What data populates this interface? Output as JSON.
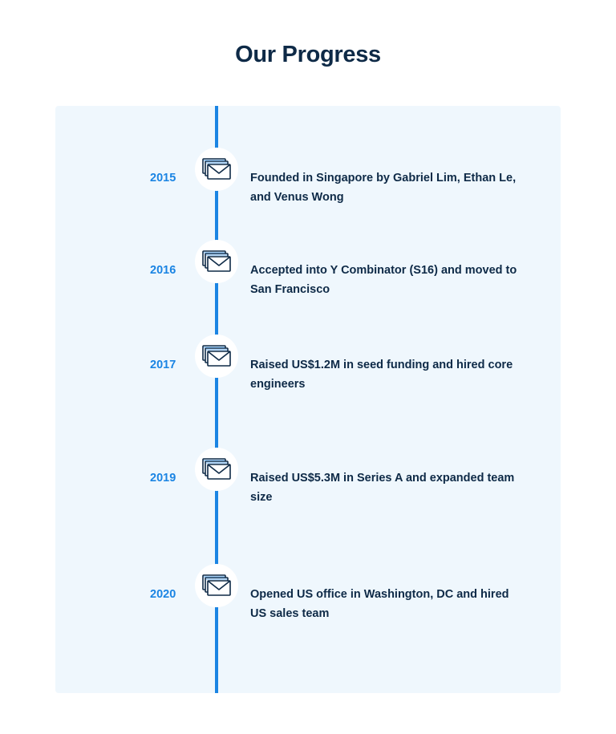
{
  "page": {
    "title": "Our Progress"
  },
  "colors": {
    "accent": "#1a84e3",
    "text": "#0e2a47",
    "panel_bg": "#eff7fd"
  },
  "timeline": {
    "icon": "stacked-envelopes-icon",
    "entries": [
      {
        "year": "2015",
        "text": "Founded in Singapore by Gabriel Lim, Ethan Le, and Venus Wong"
      },
      {
        "year": "2016",
        "text": "Accepted into Y Combinator (S16) and moved to San Francisco"
      },
      {
        "year": "2017",
        "text": "Raised US$1.2M in seed funding and hired core engineers"
      },
      {
        "year": "2019",
        "text": "Raised US$5.3M in Series A and expanded team size"
      },
      {
        "year": "2020",
        "text": "Opened US office in Washington, DC and hired US sales team"
      }
    ]
  }
}
